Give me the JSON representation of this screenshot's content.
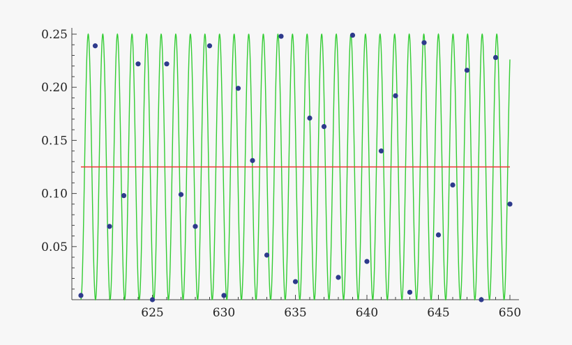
{
  "chart_data": {
    "type": "line",
    "title": "",
    "xlabel": "",
    "ylabel": "",
    "xlim": [
      620,
      650
    ],
    "ylim": [
      0,
      0.25
    ],
    "grid": false,
    "legend": "none",
    "x_ticks": [
      625,
      630,
      635,
      640,
      645,
      650
    ],
    "x_tick_labels": [
      "625",
      "630",
      "635",
      "640",
      "645",
      "650"
    ],
    "y_ticks": [
      0.05,
      0.1,
      0.15,
      0.2,
      0.25
    ],
    "y_tick_labels": [
      "0.05",
      "0.10",
      "0.15",
      "0.20",
      "0.25"
    ],
    "series": [
      {
        "kind": "curve",
        "color": "#33cc33",
        "formula": "0.125 - 0.125*cos(2*pi*f*(x - 620))",
        "frequency_cycles_per_unit": 0.98,
        "x_range": [
          620,
          650
        ]
      },
      {
        "kind": "hline",
        "color": "#ee3333",
        "y": 0.125,
        "x_range": [
          620,
          650
        ]
      },
      {
        "kind": "scatter",
        "color": "#2e3a8c",
        "points": [
          [
            620,
            0.004
          ],
          [
            621,
            0.239
          ],
          [
            622,
            0.069
          ],
          [
            623,
            0.098
          ],
          [
            624,
            0.222
          ],
          [
            625,
            0.0
          ],
          [
            626,
            0.222
          ],
          [
            627,
            0.099
          ],
          [
            628,
            0.069
          ],
          [
            629,
            0.239
          ],
          [
            630,
            0.004
          ],
          [
            631,
            0.199
          ],
          [
            632,
            0.131
          ],
          [
            633,
            0.042
          ],
          [
            634,
            0.248
          ],
          [
            635,
            0.017
          ],
          [
            636,
            0.171
          ],
          [
            637,
            0.163
          ],
          [
            638,
            0.021
          ],
          [
            639,
            0.249
          ],
          [
            640,
            0.036
          ],
          [
            641,
            0.14
          ],
          [
            642,
            0.192
          ],
          [
            643,
            0.007
          ],
          [
            644,
            0.242
          ],
          [
            645,
            0.061
          ],
          [
            646,
            0.108
          ],
          [
            647,
            0.216
          ],
          [
            648,
            0.0
          ],
          [
            649,
            0.228
          ],
          [
            650,
            0.09
          ]
        ]
      }
    ]
  }
}
